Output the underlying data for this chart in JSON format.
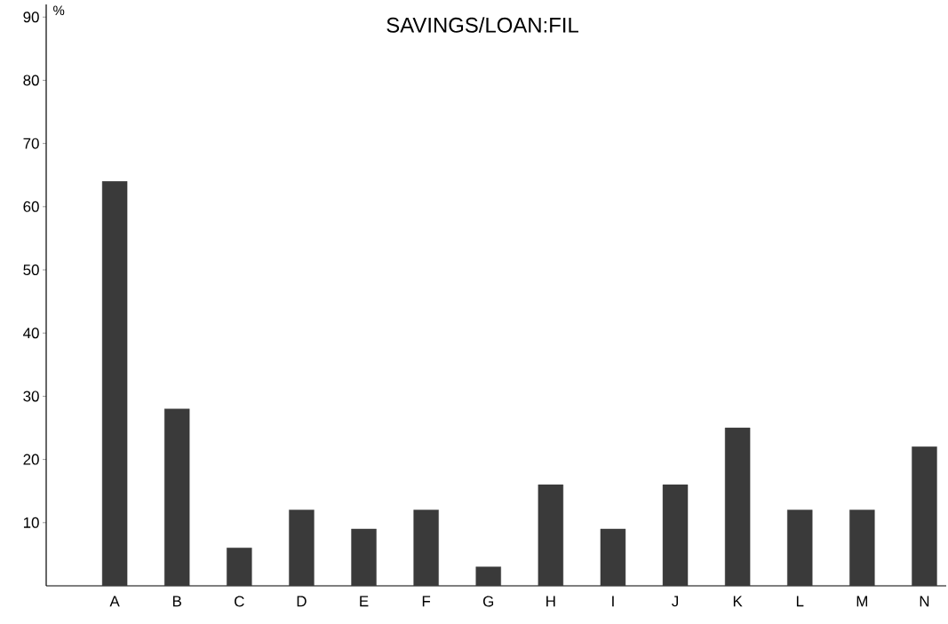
{
  "chart_data": {
    "type": "bar",
    "title": "SAVINGS/LOAN:FIL",
    "ylabel": "%",
    "categories": [
      "A",
      "B",
      "C",
      "D",
      "E",
      "F",
      "G",
      "H",
      "I",
      "J",
      "K",
      "L",
      "M",
      "N"
    ],
    "values": [
      64,
      28,
      6,
      12,
      9,
      12,
      3,
      16,
      9,
      16,
      25,
      12,
      12,
      22
    ],
    "color": "#3a3a3a",
    "ylim": [
      0,
      92
    ],
    "yticks": [
      10,
      20,
      30,
      40,
      50,
      60,
      70,
      80,
      90
    ]
  }
}
